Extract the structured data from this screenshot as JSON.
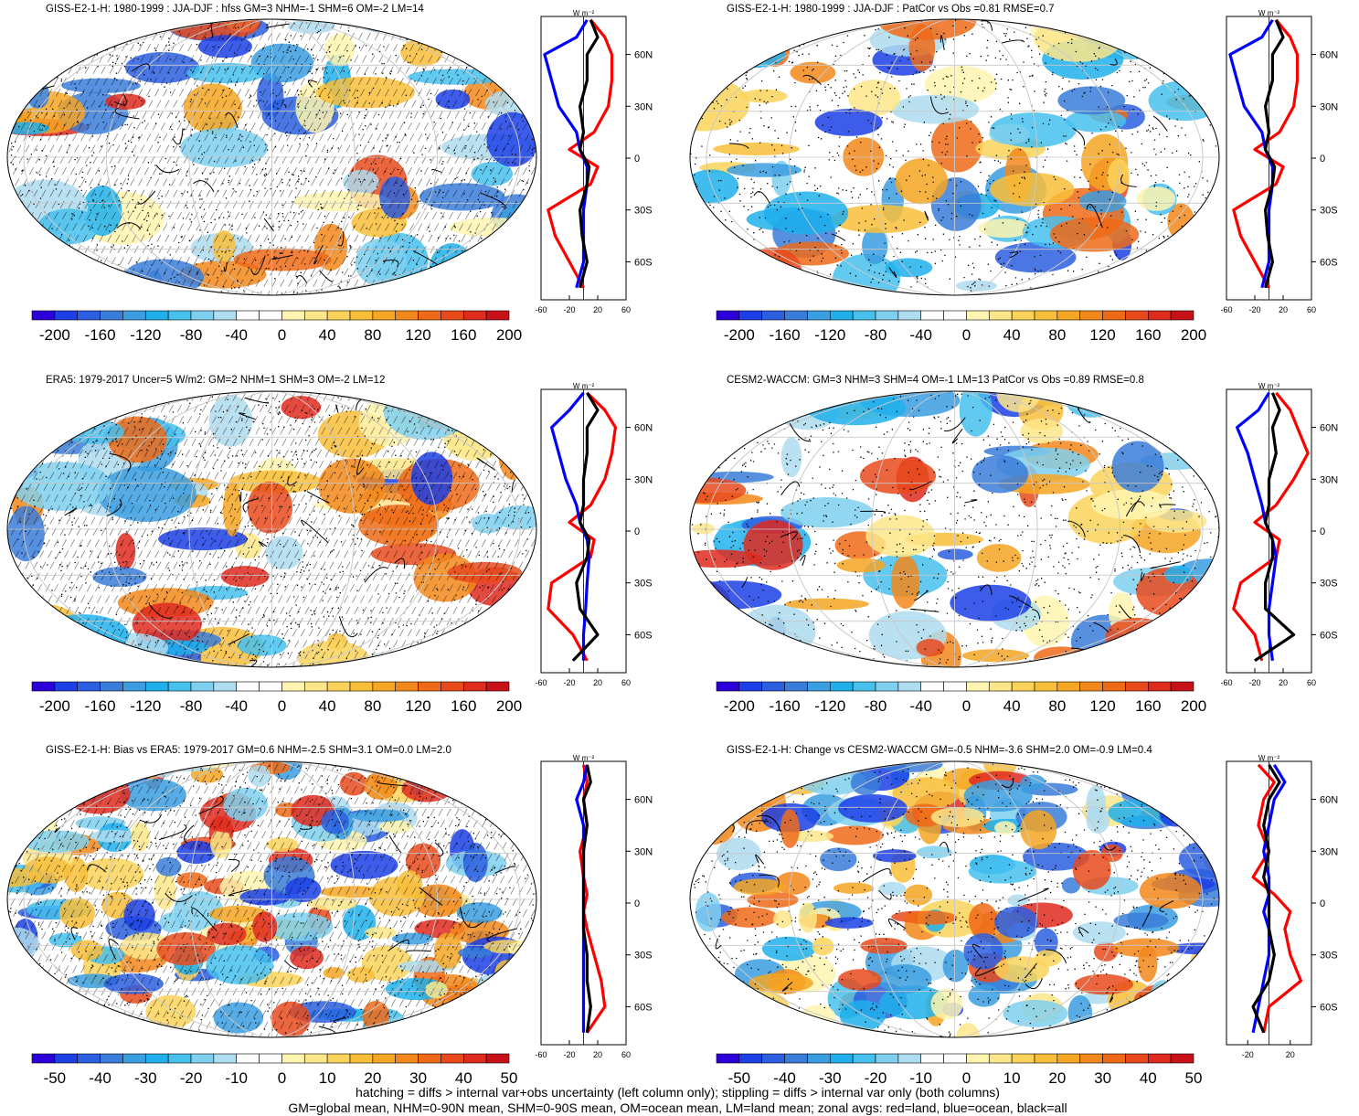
{
  "colorbar_colors": [
    "#2b00d9",
    "#1c3fe6",
    "#2c5fe0",
    "#3a7cd9",
    "#3b9ee0",
    "#1fb0ec",
    "#47c0ee",
    "#7fd0ef",
    "#aedcf0",
    "#ffffff",
    "#ffffff",
    "#fff4b0",
    "#fde68a",
    "#fbd35a",
    "#f8be3a",
    "#f5a623",
    "#f2881b",
    "#ee6a18",
    "#e84a1c",
    "#df2a1e",
    "#c8121a"
  ],
  "line_colors": {
    "land": "#ff0000",
    "ocean": "#0000ff",
    "all": "#000000"
  },
  "panels": [
    {
      "title": "GISS-E2-1-H: 1980-1999 : JJA-DJF : hfss GM=3 NHM=-1 SHM=6 OM=-2 LM=14",
      "unit": "W m⁻²",
      "lat_ticks": [
        "60N",
        "30N",
        "0",
        "30S",
        "60S"
      ],
      "x_ticks": [
        "-60",
        "-20",
        "20",
        "60"
      ],
      "cbar_labels": [
        "-200",
        "-160",
        "-120",
        "-80",
        "-40",
        "0",
        "40",
        "80",
        "120",
        "160",
        "200"
      ]
    },
    {
      "title": "GISS-E2-1-H: 1980-1999 : JJA-DJF : PatCor vs Obs =0.81 RMSE=0.7",
      "unit": "W m⁻²",
      "lat_ticks": [
        "60N",
        "30N",
        "0",
        "30S",
        "60S"
      ],
      "x_ticks": [
        "-60",
        "-20",
        "20",
        "60"
      ],
      "cbar_labels": [
        "-200",
        "-160",
        "-120",
        "-80",
        "-40",
        "0",
        "40",
        "80",
        "120",
        "160",
        "200"
      ]
    },
    {
      "title": "ERA5: 1979-2017 Uncer=5 W/m2: GM=2 NHM=1 SHM=3 OM=-2 LM=12",
      "unit": "W m⁻²",
      "lat_ticks": [
        "60N",
        "30N",
        "0",
        "30S",
        "60S"
      ],
      "x_ticks": [
        "-60",
        "-20",
        "20",
        "60"
      ],
      "cbar_labels": [
        "-200",
        "-160",
        "-120",
        "-80",
        "-40",
        "0",
        "40",
        "80",
        "120",
        "160",
        "200"
      ]
    },
    {
      "title": "CESM2-WACCM: GM=3 NHM=3 SHM=4 OM=-1 LM=13 PatCor vs Obs =0.89 RMSE=0.8",
      "unit": "W m⁻²",
      "lat_ticks": [
        "60N",
        "30N",
        "0",
        "30S",
        "60S"
      ],
      "x_ticks": [
        "-60",
        "-20",
        "20",
        "60"
      ],
      "cbar_labels": [
        "-200",
        "-160",
        "-120",
        "-80",
        "-40",
        "0",
        "40",
        "80",
        "120",
        "160",
        "200"
      ]
    },
    {
      "title": "GISS-E2-1-H: Bias vs ERA5: 1979-2017 GM=0.6 NHM=-2.5 SHM=3.1 OM=0.0 LM=2.0",
      "unit": "W m⁻²",
      "lat_ticks": [
        "60N",
        "30N",
        "0",
        "30S",
        "60S"
      ],
      "x_ticks": [
        "-60",
        "-20",
        "20",
        "60"
      ],
      "cbar_labels": [
        "-50",
        "-40",
        "-30",
        "-20",
        "-10",
        "0",
        "10",
        "20",
        "30",
        "40",
        "50"
      ]
    },
    {
      "title": "GISS-E2-1-H: Change vs CESM2-WACCM GM=-0.5 NHM=-3.6 SHM=2.0 OM=-0.9 LM=0.4",
      "unit": "W m⁻²",
      "lat_ticks": [
        "60N",
        "30N",
        "0",
        "30S",
        "60S"
      ],
      "x_ticks": [
        "-20",
        "20"
      ],
      "cbar_labels": [
        "-50",
        "-40",
        "-30",
        "-20",
        "-10",
        "0",
        "10",
        "20",
        "30",
        "40",
        "50"
      ]
    }
  ],
  "footer": [
    "hatching = diffs > internal var+obs uncertainty (left column only); stippling = diffs > internal var only (both columns)",
    "GM=global mean, NHM=0-90N mean, SHM=0-90S mean, OM=ocean mean, LM=land mean; zonal avgs: red=land, blue=ocean, black=all"
  ],
  "chart_data": [
    {
      "type": "heatmap",
      "title": "GISS-E2-1-H: 1980-1999 : JJA-DJF : hfss GM=3 NHM=-1 SHM=6 OM=-2 LM=14",
      "colorbar_range": [
        -200,
        200
      ],
      "colorbar_ticks": [
        -200,
        -160,
        -120,
        -80,
        -40,
        0,
        40,
        80,
        120,
        160,
        200
      ],
      "zonal": {
        "lat": [
          80,
          70,
          60,
          45,
          30,
          15,
          5,
          -5,
          -15,
          -30,
          -45,
          -60,
          -75
        ],
        "land": [
          10,
          30,
          40,
          40,
          35,
          15,
          -20,
          20,
          10,
          -50,
          -40,
          -20,
          0
        ],
        "ocean": [
          5,
          -10,
          -55,
          -45,
          -35,
          -10,
          -5,
          5,
          5,
          0,
          0,
          0,
          -10
        ],
        "all": [
          10,
          20,
          5,
          5,
          -5,
          0,
          -5,
          8,
          5,
          -5,
          -2,
          5,
          -5
        ]
      }
    },
    {
      "type": "heatmap",
      "title": "GISS-E2-1-H: 1980-1999 : JJA-DJF : PatCor vs Obs =0.81 RMSE=0.7",
      "colorbar_range": [
        -200,
        200
      ],
      "colorbar_ticks": [
        -200,
        -160,
        -120,
        -80,
        -40,
        0,
        40,
        80,
        120,
        160,
        200
      ],
      "zonal": {
        "lat": [
          80,
          70,
          60,
          45,
          30,
          15,
          5,
          -5,
          -15,
          -30,
          -45,
          -60,
          -75
        ],
        "land": [
          10,
          30,
          40,
          40,
          35,
          15,
          -20,
          20,
          10,
          -50,
          -40,
          -20,
          0
        ],
        "ocean": [
          5,
          -10,
          -55,
          -45,
          -35,
          -10,
          -5,
          5,
          5,
          0,
          0,
          0,
          -10
        ],
        "all": [
          10,
          20,
          5,
          5,
          -5,
          0,
          -5,
          8,
          5,
          -5,
          -2,
          5,
          -5
        ]
      }
    },
    {
      "type": "heatmap",
      "title": "ERA5: 1979-2017 Uncer=5 W/m2: GM=2 NHM=1 SHM=3 OM=-2 LM=12",
      "colorbar_range": [
        -200,
        200
      ],
      "colorbar_ticks": [
        -200,
        -160,
        -120,
        -80,
        -40,
        0,
        40,
        80,
        120,
        160,
        200
      ],
      "zonal": {
        "lat": [
          80,
          70,
          60,
          45,
          30,
          15,
          5,
          -5,
          -15,
          -30,
          -45,
          -60,
          -75
        ],
        "land": [
          5,
          30,
          45,
          40,
          30,
          10,
          -20,
          15,
          10,
          -45,
          -50,
          -15,
          5
        ],
        "ocean": [
          0,
          -20,
          -45,
          -35,
          -25,
          -10,
          -5,
          5,
          8,
          5,
          3,
          0,
          0
        ],
        "all": [
          5,
          20,
          5,
          5,
          0,
          0,
          -5,
          8,
          5,
          -10,
          -5,
          20,
          -15
        ]
      }
    },
    {
      "type": "heatmap",
      "title": "CESM2-WACCM: GM=3 NHM=3 SHM=4 OM=-1 LM=13 PatCor vs Obs =0.89 RMSE=0.8",
      "colorbar_range": [
        -200,
        200
      ],
      "colorbar_ticks": [
        -200,
        -160,
        -120,
        -80,
        -40,
        0,
        40,
        80,
        120,
        160,
        200
      ],
      "zonal": {
        "lat": [
          80,
          70,
          60,
          45,
          30,
          15,
          5,
          -5,
          -15,
          -30,
          -45,
          -60,
          -75
        ],
        "land": [
          10,
          30,
          40,
          55,
          35,
          10,
          -20,
          15,
          10,
          -40,
          -50,
          -20,
          -10
        ],
        "ocean": [
          0,
          -15,
          -45,
          -30,
          -20,
          -10,
          -5,
          5,
          10,
          5,
          0,
          0,
          5
        ],
        "all": [
          5,
          15,
          5,
          10,
          0,
          0,
          -5,
          5,
          5,
          -5,
          -5,
          35,
          -20
        ]
      }
    },
    {
      "type": "heatmap",
      "title": "GISS-E2-1-H: Bias vs ERA5: 1979-2017 GM=0.6 NHM=-2.5 SHM=3.1 OM=0.0 LM=2.0",
      "colorbar_range": [
        -50,
        50
      ],
      "colorbar_ticks": [
        -50,
        -40,
        -30,
        -20,
        -10,
        0,
        10,
        20,
        30,
        40,
        50
      ],
      "zonal": {
        "lat": [
          80,
          70,
          60,
          45,
          30,
          15,
          5,
          -5,
          -15,
          -30,
          -45,
          -60,
          -75
        ],
        "land": [
          0,
          5,
          0,
          5,
          -5,
          0,
          5,
          0,
          5,
          15,
          25,
          30,
          5
        ],
        "ocean": [
          5,
          0,
          -10,
          0,
          0,
          0,
          0,
          0,
          0,
          0,
          0,
          0,
          0
        ],
        "all": [
          5,
          10,
          0,
          5,
          0,
          0,
          0,
          0,
          0,
          5,
          5,
          10,
          5
        ]
      }
    },
    {
      "type": "heatmap",
      "title": "GISS-E2-1-H: Change vs CESM2-WACCM GM=-0.5 NHM=-3.6 SHM=2.0 OM=-0.9 LM=0.4",
      "colorbar_range": [
        -50,
        50
      ],
      "colorbar_ticks": [
        -50,
        -40,
        -30,
        -20,
        -10,
        0,
        10,
        20,
        30,
        40,
        50
      ],
      "zonal": {
        "lat": [
          80,
          70,
          60,
          45,
          30,
          15,
          5,
          -5,
          -15,
          -30,
          -45,
          -60,
          -75
        ],
        "land": [
          -10,
          5,
          -5,
          -10,
          0,
          -15,
          5,
          20,
          15,
          20,
          30,
          0,
          -5
        ],
        "ocean": [
          5,
          15,
          5,
          0,
          -5,
          0,
          0,
          -5,
          0,
          0,
          -5,
          -10,
          -15
        ],
        "all": [
          0,
          10,
          0,
          -5,
          0,
          -5,
          0,
          0,
          0,
          5,
          0,
          -15,
          -5
        ]
      }
    }
  ]
}
